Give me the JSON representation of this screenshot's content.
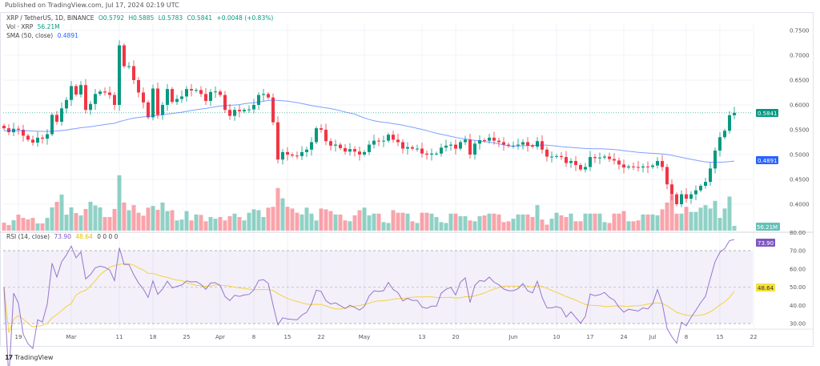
{
  "header": {
    "published": "Published on TradingView.com, Jul 17, 2024 02:19 UTC"
  },
  "legend": {
    "symbol": "XRP / TetherUS, 1D, BINANCE",
    "open": "O0.5792",
    "high": "H0.5885",
    "low": "L0.5783",
    "close": "C0.5841",
    "change": "+0.0048 (+0.83%)",
    "vol_label": "Vol · XRP",
    "vol_value": "56.21M",
    "sma_label": "SMA (50, close)",
    "sma_value": "0.4891",
    "rsi_label": "RSI (14, close)",
    "rsi_value": "73.90",
    "rsi_ma_value": "48.64",
    "rsi_extra": "0  0  0  0"
  },
  "price_axis": [
    "0.7500",
    "0.7000",
    "0.6500",
    "0.6000",
    "0.5500",
    "0.5000",
    "0.4500",
    "0.4000"
  ],
  "price_tags": {
    "last": "0.5841",
    "sma": "0.4891",
    "volume": "56.21M"
  },
  "rsi_axis": [
    "80.00",
    "70.00",
    "60.00",
    "50.00",
    "40.00",
    "30.00"
  ],
  "rsi_tags": {
    "rsi": "73.90",
    "ma": "48.64"
  },
  "time_axis": [
    "19",
    "Mar",
    "11",
    "18",
    "25",
    "Apr",
    "8",
    "15",
    "22",
    "May",
    "13",
    "20",
    "Jun",
    "10",
    "17",
    "24",
    "Jul",
    "8",
    "15",
    "22"
  ],
  "colors": {
    "up": "#089981",
    "down": "#f23645",
    "sma": "#2962ff",
    "rsi": "#7e57c2",
    "rsi_ma": "#f5d142"
  },
  "footer": {
    "brand": "TradingView",
    "logo_icon": "tradingview-logo"
  },
  "chart_data": {
    "type": "candlestick",
    "symbol": "XRP / TetherUS",
    "interval": "1D",
    "ylim": [
      0.38,
      0.76
    ],
    "closes": [
      0.553,
      0.545,
      0.552,
      0.55,
      0.538,
      0.53,
      0.524,
      0.534,
      0.532,
      0.541,
      0.58,
      0.566,
      0.593,
      0.61,
      0.638,
      0.621,
      0.64,
      0.59,
      0.602,
      0.622,
      0.627,
      0.625,
      0.62,
      0.6,
      0.72,
      0.678,
      0.678,
      0.65,
      0.625,
      0.605,
      0.575,
      0.633,
      0.58,
      0.6,
      0.632,
      0.606,
      0.612,
      0.617,
      0.632,
      0.629,
      0.63,
      0.622,
      0.608,
      0.626,
      0.627,
      0.62,
      0.59,
      0.578,
      0.59,
      0.587,
      0.59,
      0.591,
      0.6,
      0.62,
      0.622,
      0.615,
      0.565,
      0.49,
      0.505,
      0.5,
      0.498,
      0.497,
      0.505,
      0.51,
      0.525,
      0.553,
      0.55,
      0.527,
      0.518,
      0.52,
      0.513,
      0.506,
      0.511,
      0.506,
      0.5,
      0.505,
      0.52,
      0.528,
      0.527,
      0.528,
      0.54,
      0.53,
      0.525,
      0.512,
      0.515,
      0.512,
      0.512,
      0.502,
      0.5,
      0.502,
      0.502,
      0.514,
      0.518,
      0.52,
      0.512,
      0.525,
      0.53,
      0.5,
      0.522,
      0.529,
      0.528,
      0.534,
      0.528,
      0.525,
      0.52,
      0.518,
      0.518,
      0.52,
      0.525,
      0.518,
      0.516,
      0.527,
      0.51,
      0.496,
      0.496,
      0.497,
      0.495,
      0.483,
      0.487,
      0.479,
      0.47,
      0.475,
      0.495,
      0.493,
      0.494,
      0.496,
      0.491,
      0.488,
      0.48,
      0.474,
      0.476,
      0.475,
      0.474,
      0.476,
      0.475,
      0.478,
      0.487,
      0.475,
      0.44,
      0.42,
      0.4,
      0.42,
      0.411,
      0.42,
      0.428,
      0.437,
      0.445,
      0.472,
      0.508,
      0.535,
      0.548,
      0.5792,
      0.5841
    ],
    "volumes_m": [
      94,
      66,
      122,
      188,
      150,
      132,
      150,
      85,
      85,
      150,
      273,
      338,
      423,
      188,
      273,
      207,
      179,
      254,
      339,
      296,
      273,
      160,
      160,
      254,
      650,
      330,
      240,
      300,
      210,
      175,
      270,
      290,
      245,
      330,
      230,
      240,
      120,
      130,
      230,
      120,
      190,
      185,
      110,
      160,
      140,
      160,
      120,
      170,
      200,
      160,
      120,
      210,
      250,
      240,
      160,
      270,
      280,
      500,
      380,
      280,
      260,
      210,
      190,
      270,
      200,
      120,
      260,
      250,
      230,
      190,
      190,
      120,
      110,
      180,
      240,
      270,
      180,
      200,
      200,
      100,
      90,
      240,
      210,
      210,
      200,
      110,
      90,
      210,
      210,
      200,
      160,
      100,
      90,
      200,
      200,
      170,
      170,
      120,
      110,
      170,
      180,
      200,
      200,
      190,
      100,
      110,
      140,
      190,
      190,
      190,
      160,
      300,
      130,
      70,
      140,
      210,
      180,
      160,
      200,
      110,
      110,
      200,
      200,
      200,
      200,
      100,
      90,
      200,
      200,
      230,
      110,
      110,
      120,
      190,
      190,
      190,
      180,
      250,
      330,
      420,
      200,
      200,
      280,
      220,
      220,
      270,
      300,
      260,
      350,
      150,
      260,
      400,
      56.21
    ],
    "indicators": [
      "SMA 50 (close)",
      "RSI 14 (close)",
      "RSI-based MA 14"
    ]
  }
}
